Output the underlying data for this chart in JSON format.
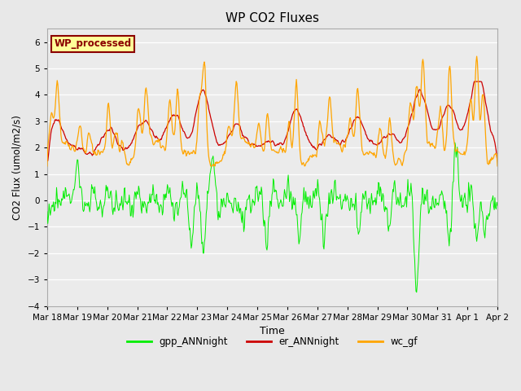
{
  "title": "WP CO2 Fluxes",
  "xlabel": "Time",
  "ylabel": "CO2 Flux (umol/m2/s)",
  "ylim": [
    -4.0,
    6.5
  ],
  "yticks": [
    -4.0,
    -3.0,
    -2.0,
    -1.0,
    0.0,
    1.0,
    2.0,
    3.0,
    4.0,
    5.0,
    6.0
  ],
  "date_labels": [
    "Mar 18",
    "Mar 19",
    "Mar 20",
    "Mar 21",
    "Mar 22",
    "Mar 23",
    "Mar 24",
    "Mar 25",
    "Mar 26",
    "Mar 27",
    "Mar 28",
    "Mar 29",
    "Mar 30",
    "Mar 31",
    "Apr 1",
    "Apr 2"
  ],
  "background_color": "#e8e8e8",
  "plot_bg_color": "#ebebeb",
  "gpp_color": "#00ee00",
  "er_color": "#cc0000",
  "wc_color": "#ffa500",
  "annotation_text": "WP_processed",
  "annotation_bg": "#ffff99",
  "annotation_fg": "#8b0000",
  "legend_labels": [
    "gpp_ANNnight",
    "er_ANNnight",
    "wc_gf"
  ],
  "seed": 42
}
